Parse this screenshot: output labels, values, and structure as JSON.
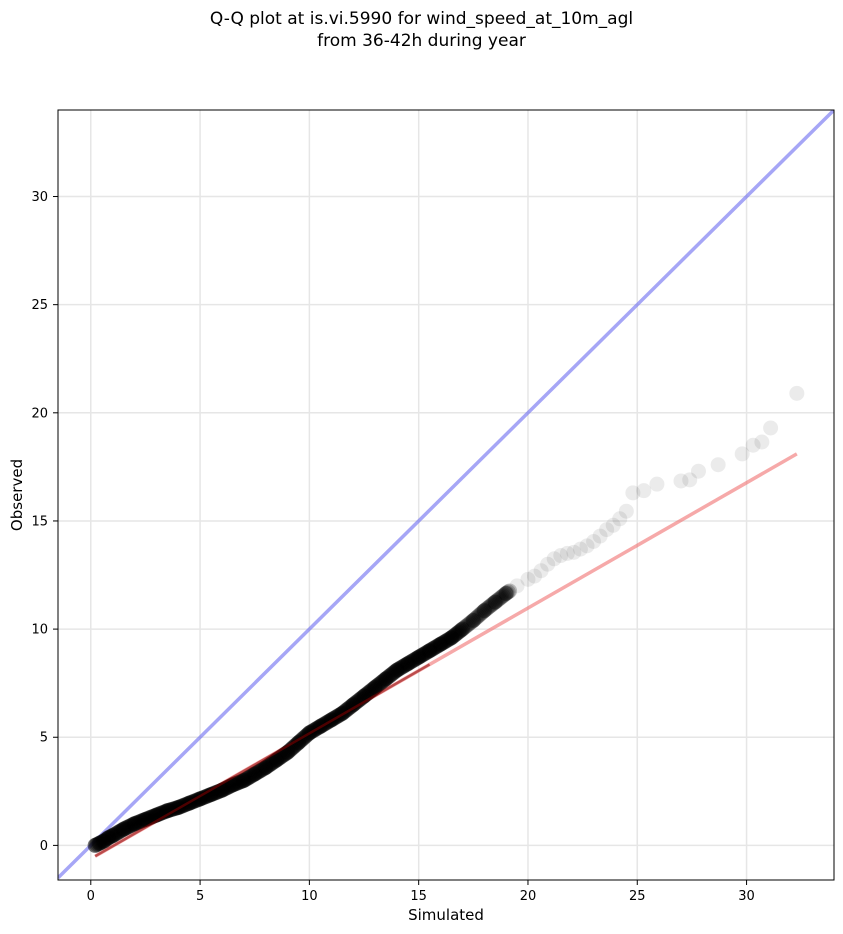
{
  "chart_data": {
    "type": "scatter",
    "title": "Q-Q plot at is.vi.5990 for wind_speed_at_10m_agl",
    "subtitle": "from 36-42h during year",
    "xlabel": "Simulated",
    "ylabel": "Observed",
    "xlim": [
      -1.5,
      34
    ],
    "ylim": [
      -1.6,
      34
    ],
    "xticks": [
      0,
      5,
      10,
      15,
      20,
      25,
      30
    ],
    "yticks": [
      0,
      5,
      10,
      15,
      20,
      25,
      30
    ],
    "grid": true,
    "colors": {
      "points": "#000000",
      "identity": "#6b6bf0",
      "fit": "#f07070",
      "fit_dark": "#8b0000"
    },
    "identity_line": {
      "x": [
        -1.5,
        34
      ],
      "y": [
        -1.5,
        34
      ]
    },
    "fit_line": {
      "x": [
        0.2,
        32.3
      ],
      "y": [
        -0.5,
        18.1
      ]
    },
    "quantiles": {
      "x": [
        0.2,
        0.4,
        0.6,
        0.8,
        1.0,
        1.5,
        2.0,
        2.5,
        3.0,
        3.5,
        4.0,
        4.5,
        5.0,
        5.5,
        6.0,
        6.5,
        7.0,
        7.5,
        8.0,
        8.5,
        9.0,
        9.5,
        10.0,
        10.5,
        11.0,
        11.5,
        12.0,
        12.5,
        13.0,
        13.5,
        14.0,
        14.5,
        15.0,
        15.5,
        16.0,
        16.5,
        17.0,
        17.5,
        18.0,
        18.5,
        19.0,
        19.5,
        20.0,
        20.3,
        20.6,
        20.9,
        21.2,
        21.5,
        21.8,
        22.1,
        22.4,
        22.7,
        23.0,
        23.3,
        23.6,
        23.9,
        24.2,
        24.5,
        24.8,
        25.3,
        25.9,
        27.0,
        27.4,
        27.8,
        28.7,
        29.8,
        30.3,
        30.7,
        31.1,
        32.3
      ],
      "y": [
        0.0,
        0.1,
        0.2,
        0.35,
        0.45,
        0.75,
        1.0,
        1.2,
        1.4,
        1.6,
        1.75,
        1.95,
        2.15,
        2.35,
        2.55,
        2.8,
        3.0,
        3.3,
        3.6,
        3.95,
        4.3,
        4.75,
        5.2,
        5.5,
        5.8,
        6.1,
        6.5,
        6.9,
        7.3,
        7.7,
        8.1,
        8.4,
        8.7,
        9.0,
        9.3,
        9.6,
        10.0,
        10.4,
        10.85,
        11.25,
        11.65,
        12.0,
        12.3,
        12.45,
        12.7,
        13.0,
        13.25,
        13.4,
        13.5,
        13.55,
        13.7,
        13.85,
        14.05,
        14.3,
        14.6,
        14.8,
        15.1,
        15.45,
        16.3,
        16.4,
        16.7,
        16.85,
        16.9,
        17.3,
        17.6,
        18.1,
        18.5,
        18.65,
        19.3,
        20.9
      ]
    }
  }
}
